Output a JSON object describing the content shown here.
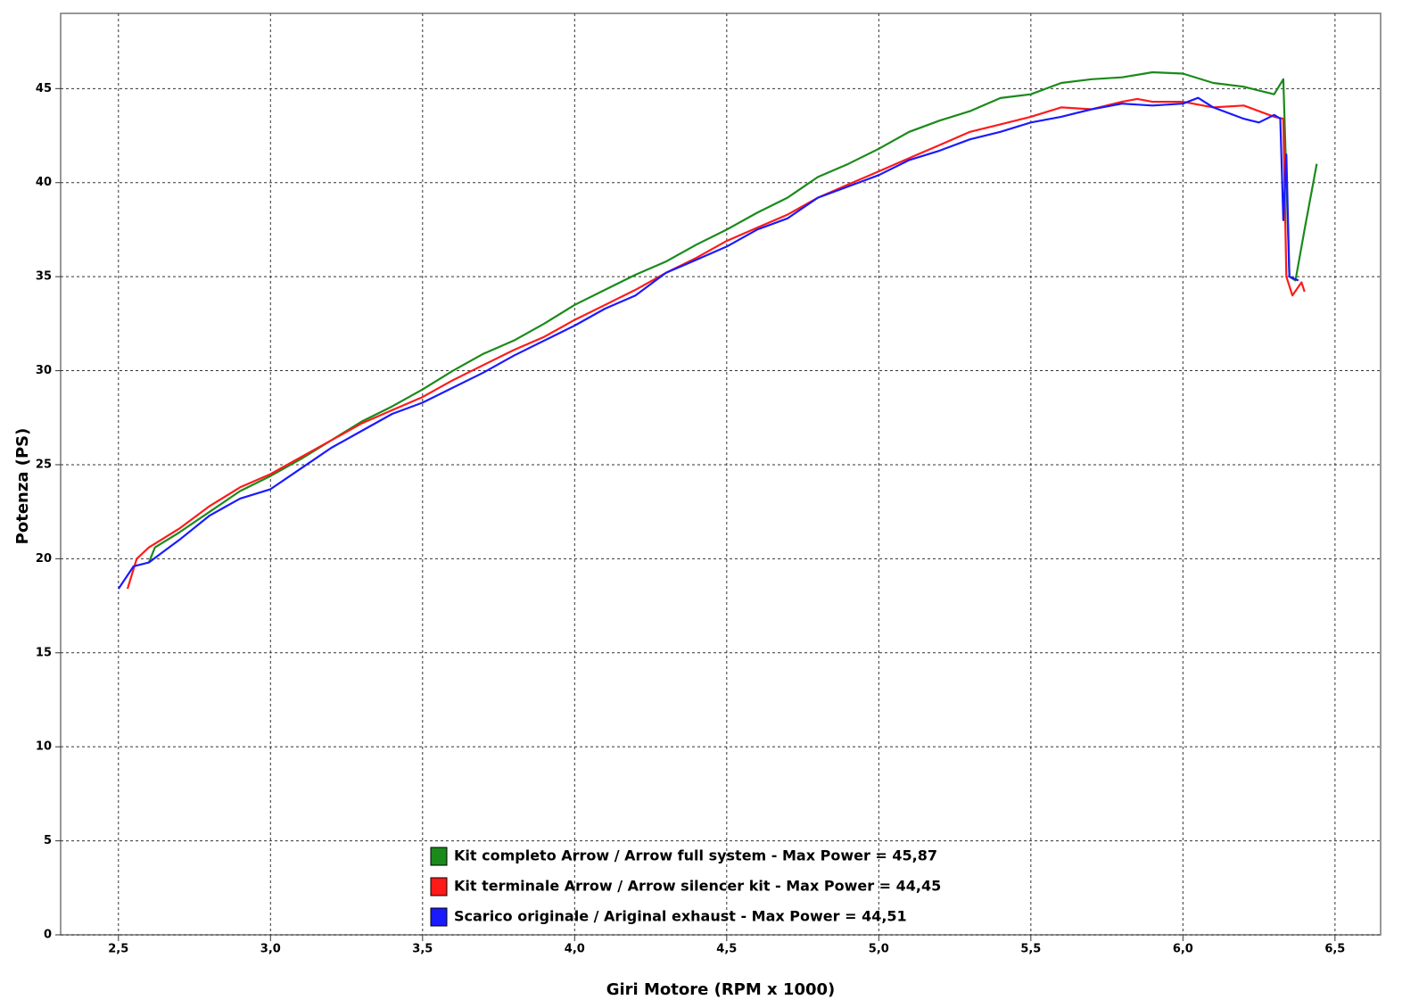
{
  "chart_data": {
    "type": "line",
    "xlabel": "Giri Motore (RPM x 1000)",
    "ylabel": "Potenza (PS)",
    "xlim": [
      2.31,
      6.65
    ],
    "ylim": [
      0,
      49
    ],
    "xticks": [
      {
        "value": 2.5,
        "label": "2,5"
      },
      {
        "value": 3.0,
        "label": "3,0"
      },
      {
        "value": 3.5,
        "label": "3,5"
      },
      {
        "value": 4.0,
        "label": "4,0"
      },
      {
        "value": 4.5,
        "label": "4,5"
      },
      {
        "value": 5.0,
        "label": "5,0"
      },
      {
        "value": 5.5,
        "label": "5,5"
      },
      {
        "value": 6.0,
        "label": "6,0"
      },
      {
        "value": 6.5,
        "label": "6,5"
      }
    ],
    "yticks": [
      0,
      5,
      10,
      15,
      20,
      25,
      30,
      35,
      40,
      45
    ],
    "grid": true,
    "legend": "lower center",
    "series": [
      {
        "name": "Kit completo Arrow / Arrow full system - Max Power = 45,87",
        "color": "#1a8a1a",
        "x": [
          2.6,
          2.62,
          2.7,
          2.8,
          2.9,
          3.0,
          3.1,
          3.2,
          3.3,
          3.4,
          3.5,
          3.6,
          3.7,
          3.8,
          3.9,
          4.0,
          4.1,
          4.2,
          4.3,
          4.4,
          4.5,
          4.6,
          4.7,
          4.8,
          4.9,
          5.0,
          5.1,
          5.2,
          5.3,
          5.4,
          5.5,
          5.6,
          5.7,
          5.8,
          5.9,
          6.0,
          6.1,
          6.2,
          6.3,
          6.33,
          6.35,
          6.37,
          6.4,
          6.44
        ],
        "values": [
          19.8,
          20.6,
          21.4,
          22.5,
          23.6,
          24.4,
          25.3,
          26.3,
          27.3,
          28.1,
          29.0,
          30.0,
          30.9,
          31.6,
          32.5,
          33.5,
          34.3,
          35.1,
          35.8,
          36.7,
          37.5,
          38.4,
          39.2,
          40.3,
          41.0,
          41.8,
          42.7,
          43.3,
          43.8,
          44.5,
          44.7,
          45.3,
          45.5,
          45.6,
          45.87,
          45.8,
          45.3,
          45.1,
          44.7,
          45.5,
          35.0,
          34.8,
          37.5,
          41.0
        ]
      },
      {
        "name": "Kit terminale Arrow / Arrow silencer kit - Max Power = 44,45",
        "color": "#ff1a1a",
        "x": [
          2.53,
          2.56,
          2.6,
          2.7,
          2.8,
          2.9,
          3.0,
          3.1,
          3.2,
          3.3,
          3.4,
          3.5,
          3.6,
          3.7,
          3.8,
          3.9,
          4.0,
          4.1,
          4.2,
          4.3,
          4.4,
          4.5,
          4.6,
          4.7,
          4.8,
          4.9,
          5.0,
          5.1,
          5.2,
          5.3,
          5.4,
          5.5,
          5.6,
          5.7,
          5.8,
          5.85,
          5.9,
          6.0,
          6.1,
          6.2,
          6.3,
          6.33,
          6.34,
          6.36,
          6.39,
          6.4
        ],
        "values": [
          18.4,
          20.0,
          20.6,
          21.6,
          22.8,
          23.8,
          24.5,
          25.4,
          26.3,
          27.2,
          27.9,
          28.6,
          29.5,
          30.3,
          31.1,
          31.8,
          32.7,
          33.5,
          34.3,
          35.2,
          36.0,
          36.9,
          37.6,
          38.3,
          39.2,
          39.9,
          40.6,
          41.3,
          42.0,
          42.7,
          43.1,
          43.5,
          44.0,
          43.9,
          44.3,
          44.45,
          44.3,
          44.3,
          44.0,
          44.1,
          43.5,
          43.4,
          35.0,
          34.0,
          34.7,
          34.2
        ]
      },
      {
        "name": "Scarico originale / Ariginal exhaust - Max Power = 44,51",
        "color": "#1a1aff",
        "x": [
          2.5,
          2.55,
          2.6,
          2.65,
          2.7,
          2.8,
          2.9,
          3.0,
          3.1,
          3.2,
          3.3,
          3.4,
          3.5,
          3.6,
          3.7,
          3.8,
          3.9,
          4.0,
          4.1,
          4.2,
          4.3,
          4.4,
          4.5,
          4.6,
          4.7,
          4.8,
          4.9,
          5.0,
          5.1,
          5.2,
          5.3,
          5.4,
          5.5,
          5.6,
          5.7,
          5.8,
          5.9,
          6.0,
          6.05,
          6.1,
          6.2,
          6.25,
          6.3,
          6.32,
          6.33,
          6.34,
          6.35,
          6.38
        ],
        "values": [
          18.4,
          19.6,
          19.8,
          20.4,
          21.0,
          22.3,
          23.2,
          23.7,
          24.8,
          25.9,
          26.8,
          27.7,
          28.3,
          29.1,
          29.9,
          30.8,
          31.6,
          32.4,
          33.3,
          34.0,
          35.2,
          35.9,
          36.6,
          37.5,
          38.1,
          39.2,
          39.8,
          40.4,
          41.2,
          41.7,
          42.3,
          42.7,
          43.2,
          43.5,
          43.9,
          44.2,
          44.1,
          44.2,
          44.51,
          44.0,
          43.4,
          43.2,
          43.6,
          43.4,
          38.0,
          41.5,
          35.0,
          34.8
        ]
      }
    ]
  }
}
